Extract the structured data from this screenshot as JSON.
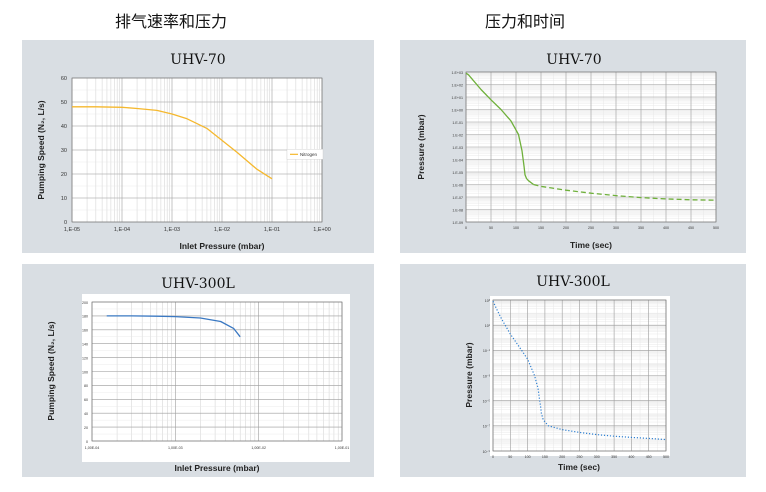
{
  "headings": {
    "left": "排气速率和压力",
    "right": "压力和时间"
  },
  "chart_data": [
    {
      "id": "c1",
      "type": "line",
      "title": "UHV-70",
      "xlabel": "Inlet Pressure (mbar)",
      "ylabel": "Pumping Speed (N₂, L/s)",
      "x_scale": "log",
      "xlim": [
        1e-05,
        1
      ],
      "ylim": [
        0,
        60
      ],
      "x_ticks": [
        1e-05,
        0.0001,
        0.001,
        0.01,
        0.1,
        1
      ],
      "x_tick_labels": [
        "1,E-05",
        "1,E-04",
        "1,E-03",
        "1,E-02",
        "1,E-01",
        "1,E+00"
      ],
      "y_ticks": [
        0,
        10,
        20,
        30,
        40,
        50,
        60
      ],
      "y_tick_labels": [
        "0",
        "10",
        "20",
        "30",
        "40",
        "50",
        "60"
      ],
      "grid": true,
      "legend": "right",
      "series": [
        {
          "name": "Nitrogen",
          "color": "#f5b82e",
          "style": "solid",
          "x": [
            1e-05,
            3e-05,
            0.0001,
            0.0002,
            0.0005,
            0.001,
            0.002,
            0.005,
            0.01,
            0.02,
            0.05,
            0.1
          ],
          "y": [
            48,
            48,
            47.8,
            47.3,
            46.5,
            45,
            43,
            39,
            34,
            29,
            22,
            18
          ]
        }
      ]
    },
    {
      "id": "c2",
      "type": "line",
      "title": "UHV-70",
      "xlabel": "Time (sec)",
      "ylabel": "Pressure (mbar)",
      "y_scale": "log",
      "xlim": [
        0,
        500
      ],
      "ylim": [
        1e-09,
        1000
      ],
      "x_ticks": [
        0,
        50,
        100,
        150,
        200,
        250,
        300,
        350,
        400,
        450,
        500
      ],
      "x_tick_labels": [
        "0",
        "50",
        "100",
        "150",
        "200",
        "250",
        "300",
        "350",
        "400",
        "450",
        "500"
      ],
      "y_ticks": [
        1000,
        100,
        10,
        1,
        0.1,
        0.01,
        0.001,
        0.0001,
        1e-05,
        1e-06,
        1e-07,
        1e-08,
        1e-09
      ],
      "y_tick_labels": [
        "1.E+03",
        "1.E+02",
        "1.E+01",
        "1.E+00",
        "1.E-01",
        "1.E-02",
        "1.E-03",
        "1.E-04",
        "1.E-05",
        "1.E-06",
        "1.E-07",
        "1.E-08",
        "1.E-09"
      ],
      "grid": true,
      "series": [
        {
          "color": "#6fb03b",
          "style": "solid",
          "x": [
            0,
            5,
            15,
            30,
            50,
            70,
            90,
            105,
            112,
            116,
            118,
            121,
            125,
            135
          ],
          "y": [
            800,
            600,
            200,
            40,
            6,
            1,
            0.12,
            0.01,
            0.0005,
            3e-05,
            6e-06,
            3e-06,
            2e-06,
            1e-06
          ]
        },
        {
          "color": "#6fb03b",
          "style": "dashed",
          "x": [
            135,
            150,
            200,
            250,
            300,
            350,
            400,
            450,
            500
          ],
          "y": [
            1e-06,
            7e-07,
            3.5e-07,
            2e-07,
            1.3e-07,
            9e-08,
            7e-08,
            6e-08,
            5.5e-08
          ]
        }
      ]
    },
    {
      "id": "c3",
      "type": "line",
      "title": "UHV-300L",
      "xlabel": "Inlet Pressure (mbar)",
      "ylabel": "Pumping Speed (N₂, L/s)",
      "x_scale": "log",
      "xlim": [
        0.0001,
        0.1
      ],
      "ylim": [
        0,
        200
      ],
      "x_ticks": [
        0.0001,
        0.001,
        0.01,
        0.1
      ],
      "x_tick_labels": [
        "1,00E-04",
        "1,00E-03",
        "1,00E-02",
        "1,00E-01"
      ],
      "y_ticks": [
        0,
        20,
        40,
        60,
        80,
        100,
        120,
        140,
        160,
        180,
        200
      ],
      "y_tick_labels": [
        "0",
        "20",
        "40",
        "60",
        "80",
        "100",
        "120",
        "140",
        "160",
        "180",
        "200"
      ],
      "grid": true,
      "series": [
        {
          "color": "#3a78c2",
          "style": "solid",
          "x": [
            0.00015,
            0.0003,
            0.0006,
            0.001,
            0.002,
            0.0035,
            0.005,
            0.006
          ],
          "y": [
            180,
            180,
            179.5,
            179,
            177,
            172,
            162,
            150
          ]
        }
      ]
    },
    {
      "id": "c4",
      "type": "line",
      "title": "UHV-300L",
      "xlabel": "Time (sec)",
      "ylabel": "Pressure (mbar)",
      "y_scale": "log",
      "xlim": [
        0,
        500
      ],
      "ylim": [
        1e-09,
        1000
      ],
      "x_ticks": [
        0,
        50,
        100,
        150,
        200,
        250,
        300,
        350,
        400,
        450,
        500
      ],
      "x_tick_labels": [
        "0",
        "50",
        "100",
        "150",
        "200",
        "250",
        "300",
        "350",
        "400",
        "450",
        "500"
      ],
      "y_ticks": [
        1000,
        10,
        0.1,
        0.001,
        1e-05,
        1e-07,
        1e-09
      ],
      "y_tick_labels": [
        "10³",
        "10¹",
        "10⁻¹",
        "10⁻³",
        "10⁻⁵",
        "10⁻⁷",
        "10⁻⁹"
      ],
      "grid": true,
      "series": [
        {
          "color": "#2e7fd0",
          "style": "dotted",
          "x": [
            0,
            10,
            25,
            50,
            75,
            100,
            120,
            130,
            135,
            138,
            140,
            145,
            160,
            200,
            250,
            300,
            350,
            400,
            450,
            500
          ],
          "y": [
            800,
            200,
            30,
            2,
            0.2,
            0.02,
            0.001,
            0.0001,
            1e-05,
            3e-06,
            1e-06,
            3e-07,
            1e-07,
            5e-08,
            3e-08,
            2e-08,
            1.5e-08,
            1.2e-08,
            1e-08,
            8e-09
          ]
        }
      ]
    }
  ]
}
